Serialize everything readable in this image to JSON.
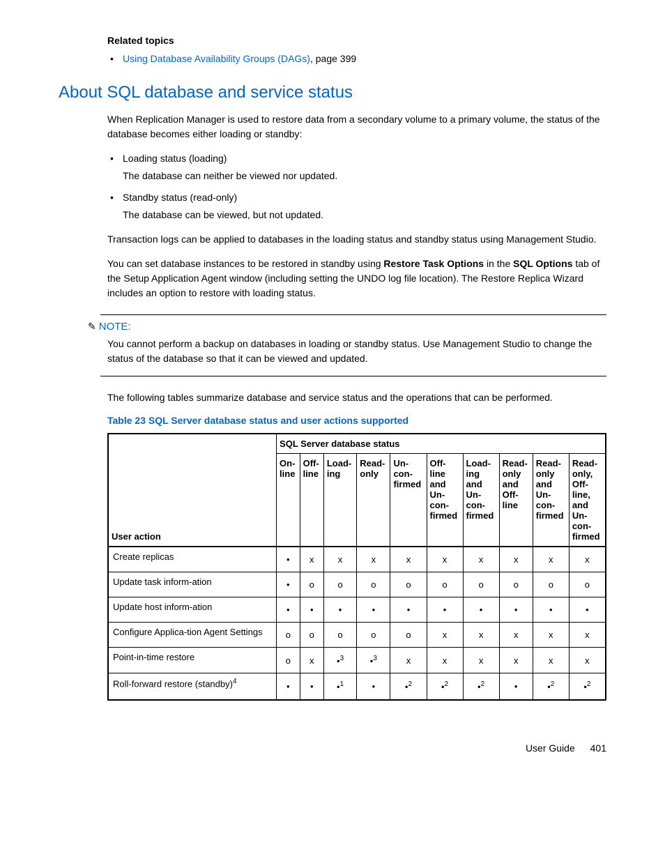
{
  "related": {
    "heading": "Related topics",
    "link": "Using Database Availability Groups (DAGs)",
    "pageref": ", page 399"
  },
  "section": {
    "heading": "About SQL database and service status",
    "intro": "When Replication Manager is used to restore data from a secondary volume to a primary volume, the status of the database becomes either loading or standby:",
    "loading_title": "Loading status (loading)",
    "loading_desc": "The database can neither be viewed nor updated.",
    "standby_title": "Standby status (read-only)",
    "standby_desc": "The database can be viewed, but not updated.",
    "txlog": "Transaction logs can be applied to databases in the loading status and standby status using Management Studio.",
    "restore_pre": "You can set database instances to be restored in standby using ",
    "restore_tok1": "Restore Task Options",
    "restore_mid": " in the ",
    "restore_tok2": "SQL Options",
    "restore_post": " tab of the Setup Application Agent window (including setting the UNDO log file location). The Restore Replica Wizard includes an option to restore with loading status."
  },
  "note": {
    "label": "NOTE:",
    "text": "You cannot perform a backup on databases in loading or standby status. Use Management Studio to change the status of the database so that it can be viewed and updated."
  },
  "tables_intro": "The following tables summarize database and service status and the operations that can be performed.",
  "table": {
    "caption": "Table 23 SQL Server database status and user actions supported",
    "group_header": "SQL Server database status",
    "user_action_header": "User action",
    "columns": [
      "On-line",
      "Off-line",
      "Load-ing",
      "Read-only",
      "Un-con-firmed",
      "Off-line and Un-con-firmed",
      "Load-ing and Un-con-firmed",
      "Read-only and Off-line",
      "Read-only and Un-con-firmed",
      "Read-only, Off-line, and Un-con-firmed"
    ],
    "rows": [
      {
        "label": "Create replicas",
        "cells": [
          "•",
          "x",
          "x",
          "x",
          "x",
          "x",
          "x",
          "x",
          "x",
          "x"
        ]
      },
      {
        "label": "Update task inform-ation",
        "cells": [
          "•",
          "o",
          "o",
          "o",
          "o",
          "o",
          "o",
          "o",
          "o",
          "o"
        ]
      },
      {
        "label": "Update host inform-ation",
        "cells": [
          "•",
          "•",
          "•",
          "•",
          "•",
          "•",
          "•",
          "•",
          "•",
          "•"
        ]
      },
      {
        "label": "Configure Applica-tion Agent Settings",
        "cells": [
          "o",
          "o",
          "o",
          "o",
          "o",
          "x",
          "x",
          "x",
          "x",
          "x"
        ]
      },
      {
        "label": "Point-in-time restore",
        "cells": [
          "o",
          "x",
          "•3",
          "•3",
          "x",
          "x",
          "x",
          "x",
          "x",
          "x"
        ]
      },
      {
        "label": "Roll-forward restore (standby)4",
        "cells": [
          "•",
          "•",
          "•1",
          "•",
          "•2",
          "•2",
          "•2",
          "•",
          "•2",
          "•2"
        ]
      }
    ]
  },
  "footer": {
    "title": "User Guide",
    "page": "401"
  }
}
